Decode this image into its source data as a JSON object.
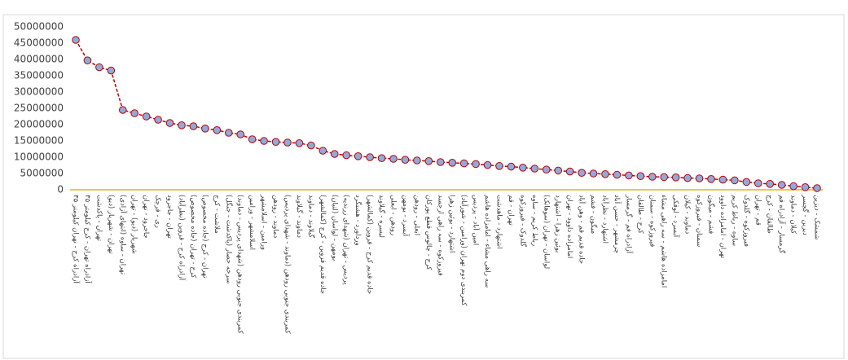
{
  "chart_data": {
    "type": "line",
    "categories": [
      "آزادراه کرج - تهران کیلومتر ۳۵",
      "آزادراه تهران - کرج کیلومتر ۳۵",
      "تهران - پاکدشت",
      "تهران - شهریار (دیو)",
      "تهران - ساوه (انتهای آزادی)",
      "شهریار (دیو) - تهران",
      "جاجرود - تهران",
      "ری - قرچک",
      "تهران - جاجرود",
      "آزادراه کرج - قزوین (نظرآباد)",
      "کرج - تهران (جاده مخصوص)",
      "تهران - کرج (جاده مخصوص)",
      "ملاشت - کرج",
      "(پاکدشت - جنگل) سرخه حصار",
      "کمربندی جنوبی رودهن (شهدای پردیس - دماوند)",
      "اسلامشهر - ورامین",
      "ورامین - اسلامشهر",
      "دماوند - رودهن",
      "کمربندی جنوبی رودهن (دماوند - شهدای پردیس)",
      "دماوند - گیلاوند",
      "گیلاوند - دماوند",
      "جاده قدیم قزوین - کرج (کمالشهر)",
      "بومهن - لواسان (لتیان)",
      "پردیس - تهران (شهدای زرندیه)",
      "ورداورد - هشتگرد",
      "جاده قدیم کرج - قزوین (کمالشهر)",
      "لیسره - گیلاوند",
      "رودهن - ابعلی",
      "آبسرد - بومهن",
      "ابعلی - رودهن",
      "کرج - چالوس قطع پورکان",
      "فیروزکوه - سه راهی ارجمند",
      "اشتهارد - بوئین زهرا",
      "کمربندی دوم تهران (ورامین - شورآباد)",
      "امین آباد - پردیس",
      "سه راهی مشاء - امامزاده هاشم",
      "اشتهارد - ماهدشت",
      "تهران - قم",
      "گلدوک - فیروزکوه",
      "رباط کریم - ساوه",
      "لواسان - تهران (سوهانک)",
      "بوئین زهرا - اشتهارد",
      "امامزاده داوود - تهران",
      "جاده قدیم قم - وهن آباد",
      "میگون - فشم",
      "اشتهارد - نظرآباد",
      "چرمشهر - حسن آباد",
      "آزادراه قم - گرمسار",
      "کرج - طالقان",
      "فیروزکوه - سمنان",
      "امامزاده هاشم - سه راهی مشاء",
      "آبسرد - لوقکی",
      "دماوند - کیلان",
      "سمنان - فیروزکوه",
      "فشم - میگون",
      "تهران - امامزاده داوود",
      "ساوه - رباط کریم",
      "فیروزکوه - گلدوک",
      "قم - تهران",
      "طالقان - کرج",
      "گرمسار - آزادراه قم",
      "کیلان - دماوند",
      "دیزین - گچسر",
      "شمشک - دیزین"
    ],
    "values": [
      46000000,
      39700000,
      37600000,
      36600000,
      24500000,
      23500000,
      22500000,
      21500000,
      20500000,
      19800000,
      19500000,
      18800000,
      18300000,
      17500000,
      17000000,
      15500000,
      15000000,
      14700000,
      14500000,
      14300000,
      13600000,
      12000000,
      11000000,
      10600000,
      10300000,
      10000000,
      9700000,
      9500000,
      9200000,
      9000000,
      8800000,
      8500000,
      8300000,
      8100000,
      7900000,
      7600000,
      7300000,
      7100000,
      6800000,
      6500000,
      6200000,
      5900000,
      5600000,
      5200000,
      5000000,
      4800000,
      4600000,
      4400000,
      4200000,
      4000000,
      3900000,
      3800000,
      3600000,
      3500000,
      3300000,
      3100000,
      2900000,
      2400000,
      2000000,
      1800000,
      1500000,
      1100000,
      800000,
      500000
    ],
    "color": "#c00000",
    "marker_color": "#8faadc",
    "axis_color": "#e6b422",
    "ylim": [
      0,
      50000000
    ],
    "yticks": [
      0,
      5000000,
      10000000,
      15000000,
      20000000,
      25000000,
      30000000,
      35000000,
      40000000,
      45000000,
      50000000
    ],
    "grid": false
  }
}
